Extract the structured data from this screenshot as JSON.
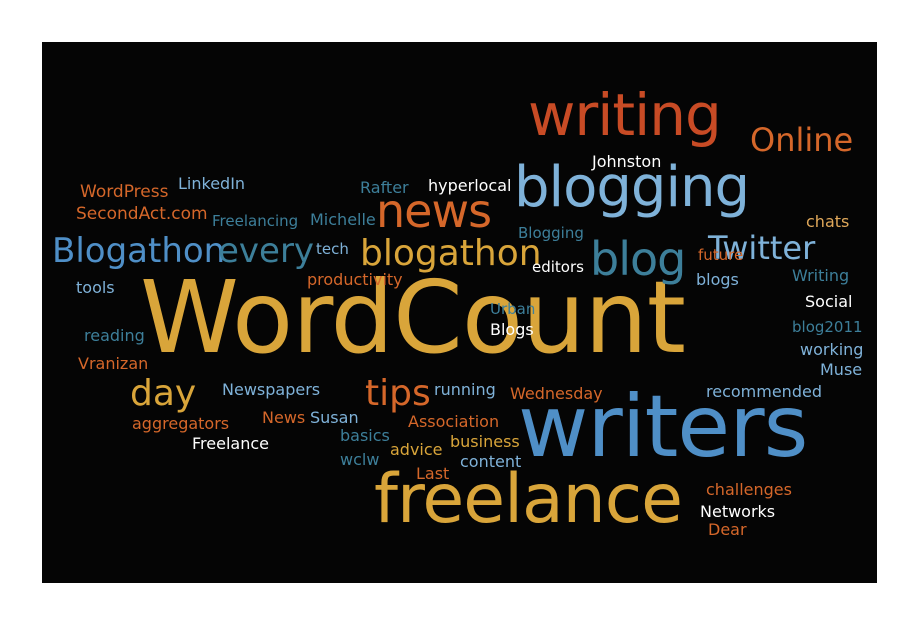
{
  "palette": {
    "gold": "#d9a53a",
    "orange": "#d5672a",
    "red": "#c84b25",
    "blue": "#4f8fc7",
    "light_blue": "#7fb2d9",
    "teal": "#3d7f9a",
    "white": "#ffffff",
    "tan": "#e0a85a"
  },
  "words": [
    {
      "id": "wordcount",
      "text": "WordCount",
      "color": "gold"
    },
    {
      "id": "writers",
      "text": "writers",
      "color": "blue"
    },
    {
      "id": "freelance-big",
      "text": "freelance",
      "color": "gold"
    },
    {
      "id": "writing",
      "text": "writing",
      "color": "red"
    },
    {
      "id": "blogging",
      "text": "blogging",
      "color": "light_blue"
    },
    {
      "id": "news",
      "text": "news",
      "color": "orange"
    },
    {
      "id": "blog",
      "text": "blog",
      "color": "teal"
    },
    {
      "id": "blogathon-lower",
      "text": "blogathon",
      "color": "gold"
    },
    {
      "id": "blogathon-cap",
      "text": "Blogathon",
      "color": "blue"
    },
    {
      "id": "every",
      "text": "every",
      "color": "teal"
    },
    {
      "id": "twitter",
      "text": "Twitter",
      "color": "light_blue"
    },
    {
      "id": "online",
      "text": "Online",
      "color": "orange"
    },
    {
      "id": "day",
      "text": "day",
      "color": "gold"
    },
    {
      "id": "tips",
      "text": "tips",
      "color": "orange"
    },
    {
      "id": "johnston",
      "text": "Johnston",
      "color": "white"
    },
    {
      "id": "hyperlocal",
      "text": "hyperlocal",
      "color": "white"
    },
    {
      "id": "rafter",
      "text": "Rafter",
      "color": "teal"
    },
    {
      "id": "wordpress",
      "text": "WordPress",
      "color": "orange"
    },
    {
      "id": "linkedin",
      "text": "LinkedIn",
      "color": "light_blue"
    },
    {
      "id": "secondact",
      "text": "SecondAct.com",
      "color": "orange"
    },
    {
      "id": "freelancing",
      "text": "Freelancing",
      "color": "teal"
    },
    {
      "id": "michelle",
      "text": "Michelle",
      "color": "teal"
    },
    {
      "id": "blogging-small",
      "text": "Blogging",
      "color": "teal"
    },
    {
      "id": "chats",
      "text": "chats",
      "color": "tan"
    },
    {
      "id": "tech",
      "text": "tech",
      "color": "light_blue"
    },
    {
      "id": "productivity",
      "text": "productivity",
      "color": "orange"
    },
    {
      "id": "future",
      "text": "future",
      "color": "orange"
    },
    {
      "id": "editors",
      "text": "editors",
      "color": "white"
    },
    {
      "id": "blogs-small",
      "text": "blogs",
      "color": "light_blue"
    },
    {
      "id": "writing-small",
      "text": "Writing",
      "color": "teal"
    },
    {
      "id": "tools",
      "text": "tools",
      "color": "light_blue"
    },
    {
      "id": "urban",
      "text": "Urban",
      "color": "teal"
    },
    {
      "id": "social",
      "text": "Social",
      "color": "white"
    },
    {
      "id": "blogs-cap",
      "text": "Blogs",
      "color": "white"
    },
    {
      "id": "reading",
      "text": "reading",
      "color": "teal"
    },
    {
      "id": "blog2011",
      "text": "blog2011",
      "color": "teal"
    },
    {
      "id": "working",
      "text": "working",
      "color": "light_blue"
    },
    {
      "id": "vranizan",
      "text": "Vranizan",
      "color": "orange"
    },
    {
      "id": "muse",
      "text": "Muse",
      "color": "light_blue"
    },
    {
      "id": "newspapers",
      "text": "Newspapers",
      "color": "light_blue"
    },
    {
      "id": "running",
      "text": "running",
      "color": "light_blue"
    },
    {
      "id": "wednesday",
      "text": "Wednesday",
      "color": "orange"
    },
    {
      "id": "recommended",
      "text": "recommended",
      "color": "light_blue"
    },
    {
      "id": "aggregators",
      "text": "aggregators",
      "color": "orange"
    },
    {
      "id": "news-small",
      "text": "News",
      "color": "orange"
    },
    {
      "id": "susan",
      "text": "Susan",
      "color": "light_blue"
    },
    {
      "id": "association",
      "text": "Association",
      "color": "orange"
    },
    {
      "id": "freelance-small",
      "text": "Freelance",
      "color": "white"
    },
    {
      "id": "basics",
      "text": "basics",
      "color": "teal"
    },
    {
      "id": "business",
      "text": "business",
      "color": "gold"
    },
    {
      "id": "advice",
      "text": "advice",
      "color": "gold"
    },
    {
      "id": "wclw",
      "text": "wclw",
      "color": "teal"
    },
    {
      "id": "content",
      "text": "content",
      "color": "light_blue"
    },
    {
      "id": "last",
      "text": "Last",
      "color": "orange"
    },
    {
      "id": "challenges",
      "text": "challenges",
      "color": "orange"
    },
    {
      "id": "networks",
      "text": "Networks",
      "color": "white"
    },
    {
      "id": "dear",
      "text": "Dear",
      "color": "orange"
    }
  ]
}
